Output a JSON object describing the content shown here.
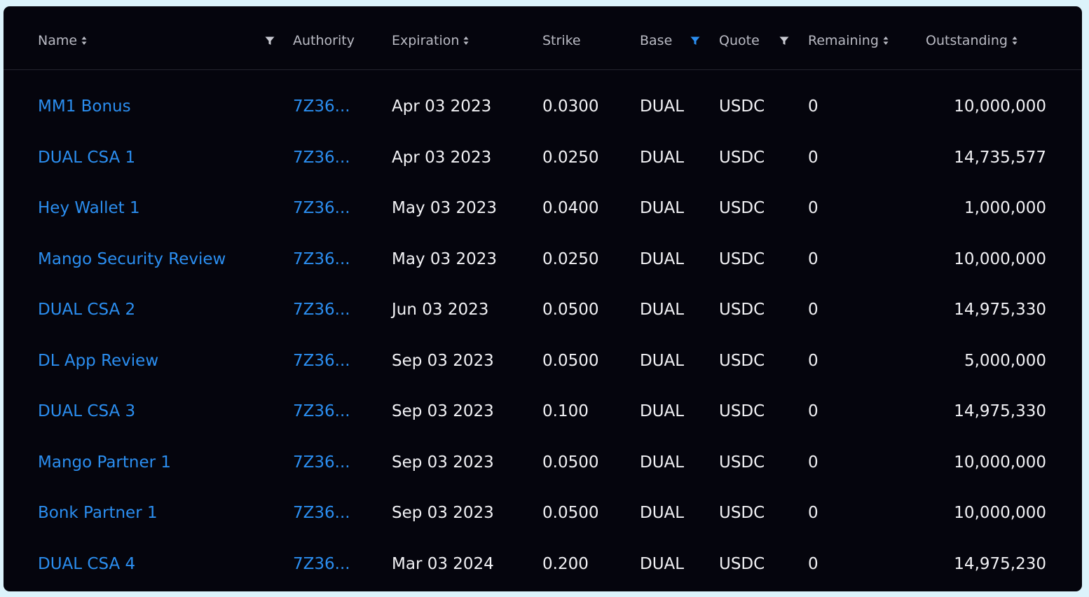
{
  "colors": {
    "background": "#dcf3fb",
    "panel": "#05050d",
    "link": "#2b8ef0",
    "header_text": "#b9bac3",
    "cell_text": "#f2f2f5",
    "filter_active": "#2b8ef0",
    "filter_inactive": "#c9cad2"
  },
  "columns": {
    "name": "Name",
    "authority": "Authority",
    "expiration": "Expiration",
    "strike": "Strike",
    "base": "Base",
    "quote": "Quote",
    "remaining": "Remaining",
    "outstanding": "Outstanding"
  },
  "filters": {
    "name": {
      "icon": "filter-icon",
      "active": false
    },
    "base": {
      "icon": "filter-icon",
      "active": true
    },
    "quote": {
      "icon": "filter-icon",
      "active": false
    }
  },
  "rows": [
    {
      "name": "MM1 Bonus",
      "authority": "7Z36...",
      "expiration": "Apr 03 2023",
      "strike": "0.0300",
      "base": "DUAL",
      "quote": "USDC",
      "remaining": "0",
      "outstanding": "10,000,000"
    },
    {
      "name": "DUAL CSA 1",
      "authority": "7Z36...",
      "expiration": "Apr 03 2023",
      "strike": "0.0250",
      "base": "DUAL",
      "quote": "USDC",
      "remaining": "0",
      "outstanding": "14,735,577"
    },
    {
      "name": "Hey Wallet 1",
      "authority": "7Z36...",
      "expiration": "May 03 2023",
      "strike": "0.0400",
      "base": "DUAL",
      "quote": "USDC",
      "remaining": "0",
      "outstanding": "1,000,000"
    },
    {
      "name": "Mango Security Review",
      "authority": "7Z36...",
      "expiration": "May 03 2023",
      "strike": "0.0250",
      "base": "DUAL",
      "quote": "USDC",
      "remaining": "0",
      "outstanding": "10,000,000"
    },
    {
      "name": "DUAL CSA 2",
      "authority": "7Z36...",
      "expiration": "Jun 03 2023",
      "strike": "0.0500",
      "base": "DUAL",
      "quote": "USDC",
      "remaining": "0",
      "outstanding": "14,975,330"
    },
    {
      "name": "DL App Review",
      "authority": "7Z36...",
      "expiration": "Sep 03 2023",
      "strike": "0.0500",
      "base": "DUAL",
      "quote": "USDC",
      "remaining": "0",
      "outstanding": "5,000,000"
    },
    {
      "name": "DUAL CSA 3",
      "authority": "7Z36...",
      "expiration": "Sep 03 2023",
      "strike": "0.100",
      "base": "DUAL",
      "quote": "USDC",
      "remaining": "0",
      "outstanding": "14,975,330"
    },
    {
      "name": "Mango Partner 1",
      "authority": "7Z36...",
      "expiration": "Sep 03 2023",
      "strike": "0.0500",
      "base": "DUAL",
      "quote": "USDC",
      "remaining": "0",
      "outstanding": "10,000,000"
    },
    {
      "name": "Bonk Partner 1",
      "authority": "7Z36...",
      "expiration": "Sep 03 2023",
      "strike": "0.0500",
      "base": "DUAL",
      "quote": "USDC",
      "remaining": "0",
      "outstanding": "10,000,000"
    },
    {
      "name": "DUAL CSA 4",
      "authority": "7Z36...",
      "expiration": "Mar 03 2024",
      "strike": "0.200",
      "base": "DUAL",
      "quote": "USDC",
      "remaining": "0",
      "outstanding": "14,975,230"
    }
  ]
}
